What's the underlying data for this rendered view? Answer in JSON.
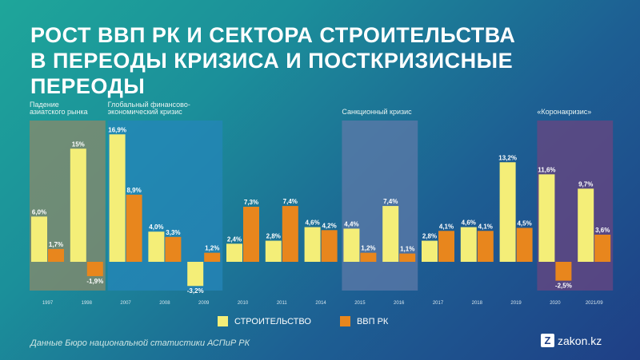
{
  "title_lines": [
    "РОСТ ВВП РК И СЕКТОРА СТРОИТЕЛЬСТВА",
    "В ПЕРЕОДЫ КРИЗИСА И ПОСТКРИЗИСНЫЕ",
    "ПЕРЕОДЫ"
  ],
  "source": "Данные Бюро национальной статистики АСПиР РК",
  "brand": {
    "logo_letter": "Z",
    "name": "zakon.kz"
  },
  "colors": {
    "construction": "#f4ee78",
    "gdp": "#e8861d",
    "asian_band": "#8b8a6a",
    "gfc_band": "#2686ba",
    "sanction_band": "#5d7aa8",
    "corona_band": "#6a4580"
  },
  "chart_data": {
    "type": "bar",
    "title": "РОСТ ВВП РК И СЕКТОРА СТРОИТЕЛЬСТВА В ПЕРЕОДЫ КРИЗИСА И ПОСТКРИЗИСНЫЕ ПЕРЕОДЫ",
    "categories": [
      "1997",
      "1998",
      "2007",
      "2008",
      "2009",
      "2010",
      "2011",
      "2014",
      "2015",
      "2016",
      "2017",
      "2018",
      "2019",
      "2020",
      "2021/09"
    ],
    "series": [
      {
        "name": "СТРОИТЕЛЬСТВО",
        "values": [
          6.0,
          15,
          16.9,
          4.0,
          -3.2,
          2.4,
          2.8,
          4.6,
          4.4,
          7.4,
          2.8,
          4.6,
          13.2,
          11.6,
          9.7
        ],
        "labels": [
          "6,0%",
          "15%",
          "16,9%",
          "4,0%",
          "-3,2%",
          "2,4%",
          "2,8%",
          "4,6%",
          "4,4%",
          "7,4%",
          "2,8%",
          "4,6%",
          "13,2%",
          "11,6%",
          "9,7%"
        ]
      },
      {
        "name": "ВВП РК",
        "values": [
          1.7,
          -1.9,
          8.9,
          3.3,
          1.2,
          7.3,
          7.4,
          4.2,
          1.2,
          1.1,
          4.1,
          4.1,
          4.5,
          -2.5,
          3.6
        ],
        "labels": [
          "1,7%",
          "-1,9%",
          "8,9%",
          "3,3%",
          "1,2%",
          "7,3%",
          "7,4%",
          "4,2%",
          "1,2%",
          "1,1%",
          "4,1%",
          "4,1%",
          "4,5%",
          "-2,5%",
          "3,6%"
        ]
      }
    ],
    "ylim": [
      -3.5,
      17.5
    ],
    "periods": [
      {
        "name": "asian",
        "text": [
          "Падение",
          "азиатского рынка"
        ],
        "from": 0,
        "to": 1
      },
      {
        "name": "gfc",
        "text": [
          "Глобальный финансово-",
          "экономический кризис"
        ],
        "from": 2,
        "to": 4
      },
      {
        "name": "sanction",
        "text": [
          "Санкционный кризис"
        ],
        "from": 8,
        "to": 9
      },
      {
        "name": "corona",
        "text": [
          "«Коронакризис»"
        ],
        "from": 13,
        "to": 14
      }
    ]
  }
}
